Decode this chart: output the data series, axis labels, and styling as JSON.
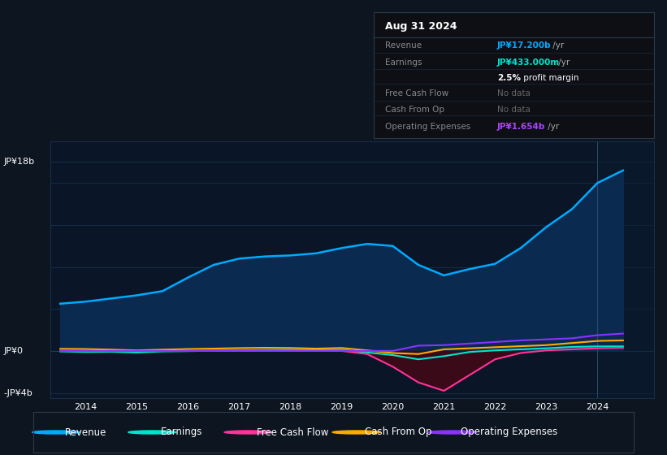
{
  "bg_color": "#0d1520",
  "plot_bg": "#0a1628",
  "years": [
    2013.5,
    2014.0,
    2014.5,
    2015.0,
    2015.5,
    2016.0,
    2016.5,
    2017.0,
    2017.5,
    2018.0,
    2018.5,
    2019.0,
    2019.5,
    2020.0,
    2020.5,
    2021.0,
    2021.5,
    2022.0,
    2022.5,
    2023.0,
    2023.5,
    2024.0,
    2024.5
  ],
  "revenue": [
    4.5,
    4.7,
    5.0,
    5.3,
    5.7,
    7.0,
    8.2,
    8.8,
    9.0,
    9.1,
    9.3,
    9.8,
    10.2,
    10.0,
    8.2,
    7.2,
    7.8,
    8.3,
    9.8,
    11.8,
    13.5,
    16.0,
    17.2
  ],
  "earnings": [
    -0.05,
    -0.1,
    -0.08,
    -0.15,
    -0.05,
    -0.02,
    0.02,
    0.05,
    0.08,
    0.1,
    0.09,
    0.1,
    -0.15,
    -0.4,
    -0.8,
    -0.5,
    -0.1,
    0.05,
    0.15,
    0.25,
    0.38,
    0.43,
    0.43
  ],
  "free_cash_flow": [
    0.0,
    0.0,
    0.0,
    0.0,
    0.0,
    0.0,
    0.0,
    0.0,
    0.0,
    0.0,
    0.0,
    0.0,
    -0.3,
    -1.5,
    -3.0,
    -3.8,
    -2.3,
    -0.8,
    -0.2,
    0.05,
    0.15,
    0.25,
    0.3
  ],
  "cash_from_op": [
    0.2,
    0.18,
    0.12,
    0.05,
    0.12,
    0.18,
    0.22,
    0.27,
    0.3,
    0.28,
    0.22,
    0.28,
    0.05,
    -0.2,
    -0.3,
    0.15,
    0.25,
    0.35,
    0.45,
    0.55,
    0.75,
    0.95,
    1.0
  ],
  "operating_expenses": [
    0.0,
    0.0,
    0.0,
    0.0,
    0.0,
    0.0,
    0.0,
    0.0,
    0.0,
    0.0,
    0.0,
    0.0,
    0.0,
    0.0,
    0.5,
    0.55,
    0.7,
    0.85,
    1.0,
    1.1,
    1.2,
    1.5,
    1.65
  ],
  "revenue_color": "#00aaff",
  "earnings_color": "#00e5cc",
  "fcf_color": "#ff3399",
  "cashop_color": "#ffaa00",
  "opex_color": "#8833ff",
  "revenue_fill": "#0a2a50",
  "fcf_fill_neg": "#3a0a18",
  "ylim": [
    -4.5,
    20.0
  ],
  "xlim": [
    2013.3,
    2025.1
  ],
  "grid_lines_y": [
    -4,
    0,
    4,
    8,
    12,
    16,
    18
  ],
  "xtick_vals": [
    2014,
    2015,
    2016,
    2017,
    2018,
    2019,
    2020,
    2021,
    2022,
    2023,
    2024
  ],
  "xtick_labels": [
    "2014",
    "2015",
    "2016",
    "2017",
    "2018",
    "2019",
    "2020",
    "2021",
    "2022",
    "2023",
    "2024"
  ],
  "ylabel_18b": "JP¥18b",
  "ylabel_0": "JP¥0",
  "ylabel_neg4b": "-JP¥4b",
  "shade_start": 2024.0,
  "shade_color": "#0a1a30",
  "legend_items": [
    {
      "label": "Revenue",
      "color": "#00aaff"
    },
    {
      "label": "Earnings",
      "color": "#00e5cc"
    },
    {
      "label": "Free Cash Flow",
      "color": "#ff3399"
    },
    {
      "label": "Cash From Op",
      "color": "#ffaa00"
    },
    {
      "label": "Operating Expenses",
      "color": "#8833ff"
    }
  ],
  "infobox": {
    "title": "Aug 31 2024",
    "rows": [
      {
        "label": "Revenue",
        "value": "JP¥17.200b",
        "suffix": " /yr",
        "value_color": "#00aaff",
        "nodata": false
      },
      {
        "label": "Earnings",
        "value": "JP¥433.000m",
        "suffix": " /yr",
        "value_color": "#00e5cc",
        "nodata": false
      },
      {
        "label": "",
        "value": "2.5%",
        "suffix": " profit margin",
        "value_color": "#ffffff",
        "nodata": false
      },
      {
        "label": "Free Cash Flow",
        "value": "No data",
        "suffix": "",
        "value_color": "#666666",
        "nodata": true
      },
      {
        "label": "Cash From Op",
        "value": "No data",
        "suffix": "",
        "value_color": "#666666",
        "nodata": true
      },
      {
        "label": "Operating Expenses",
        "value": "JP¥1.654b",
        "suffix": " /yr",
        "value_color": "#aa44ff",
        "nodata": false
      }
    ]
  }
}
